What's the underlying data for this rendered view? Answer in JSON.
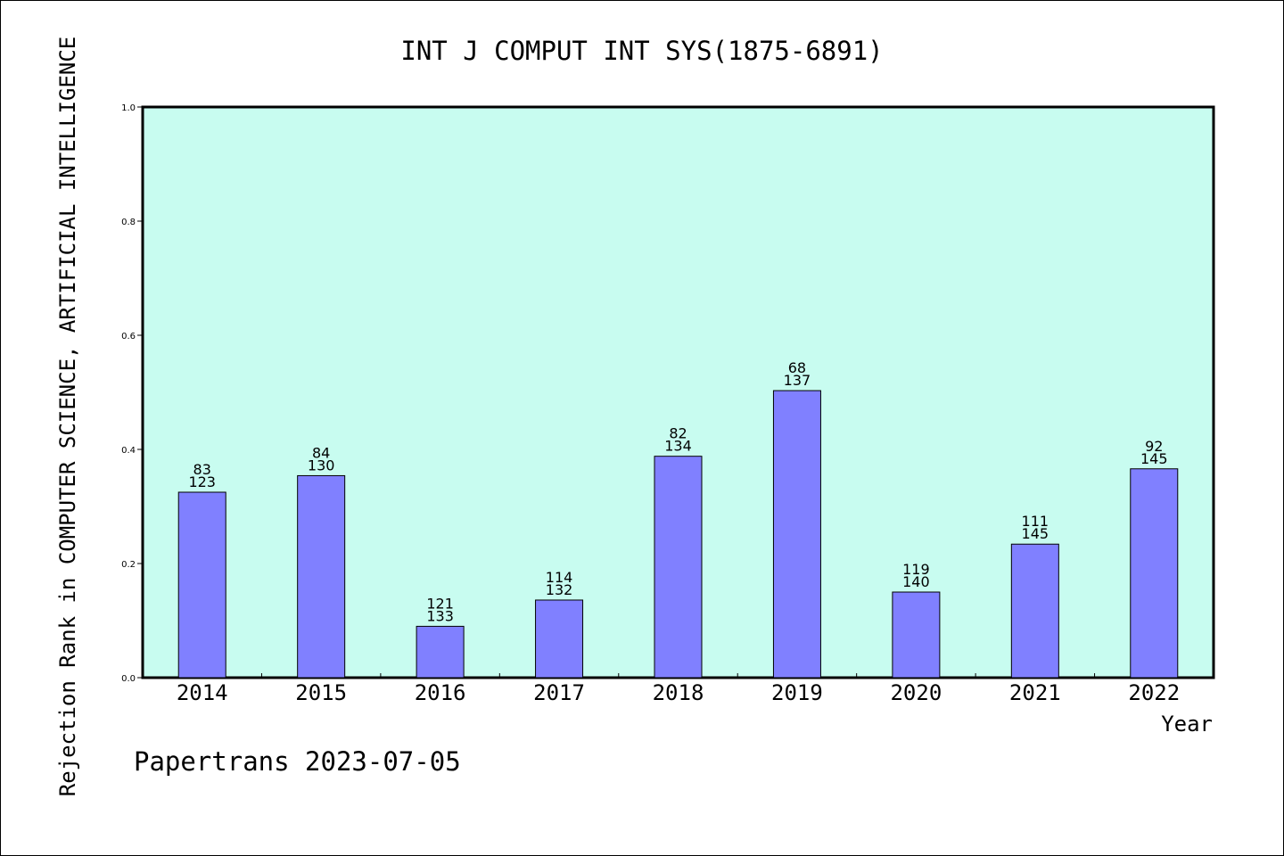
{
  "chart_data": {
    "type": "bar",
    "title": "INT J COMPUT INT SYS(1875-6891)",
    "xlabel": "Year",
    "ylabel": "Rejection Rank in COMPUTER SCIENCE, ARTIFICIAL INTELLIGENCE",
    "ylim": [
      0,
      1.0
    ],
    "yticks": [
      "0.0",
      "0.2",
      "0.4",
      "0.6",
      "0.8",
      "1.0"
    ],
    "categories": [
      "2014",
      "2015",
      "2016",
      "2017",
      "2018",
      "2019",
      "2020",
      "2021",
      "2022"
    ],
    "values": [
      0.325,
      0.354,
      0.09,
      0.136,
      0.388,
      0.503,
      0.15,
      0.234,
      0.366
    ],
    "rank_labels": [
      "83",
      "84",
      "121",
      "114",
      "82",
      "68",
      "119",
      "111",
      "92"
    ],
    "total_labels": [
      "123",
      "130",
      "133",
      "132",
      "134",
      "137",
      "140",
      "145",
      "145"
    ],
    "grid": false,
    "bar_color": "#8080ff",
    "plot_background": "#c8fcf0"
  },
  "footer": "Papertrans 2023-07-05"
}
